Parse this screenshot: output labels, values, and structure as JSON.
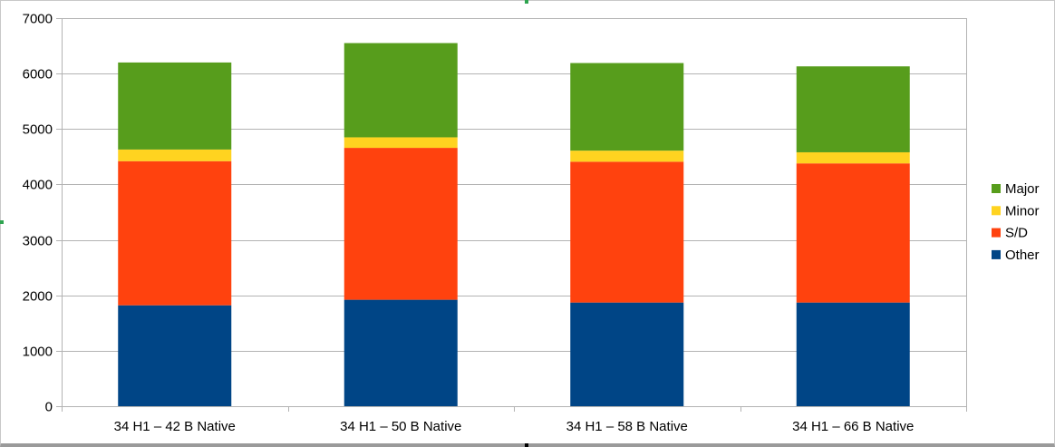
{
  "chart_data": {
    "type": "bar",
    "stacked": true,
    "categories": [
      "34 H1 – 42 B Native",
      "34 H1 – 50 B Native",
      "34 H1 – 58 B Native",
      "34 H1 – 66 B Native"
    ],
    "series": [
      {
        "name": "Other",
        "color": "#004586",
        "values": [
          1820,
          1920,
          1870,
          1870
        ]
      },
      {
        "name": "S/D",
        "color": "#ff420e",
        "values": [
          2600,
          2740,
          2540,
          2510
        ]
      },
      {
        "name": "Minor",
        "color": "#ffd320",
        "values": [
          210,
          190,
          200,
          200
        ]
      },
      {
        "name": "Major",
        "color": "#579d1c",
        "values": [
          1570,
          1700,
          1580,
          1550
        ]
      }
    ],
    "ylim": [
      0,
      7000
    ],
    "yticks": [
      0,
      1000,
      2000,
      3000,
      4000,
      5000,
      6000,
      7000
    ],
    "grid": true,
    "legend_position": "right",
    "legend_order": [
      "Major",
      "Minor",
      "S/D",
      "Other"
    ]
  }
}
